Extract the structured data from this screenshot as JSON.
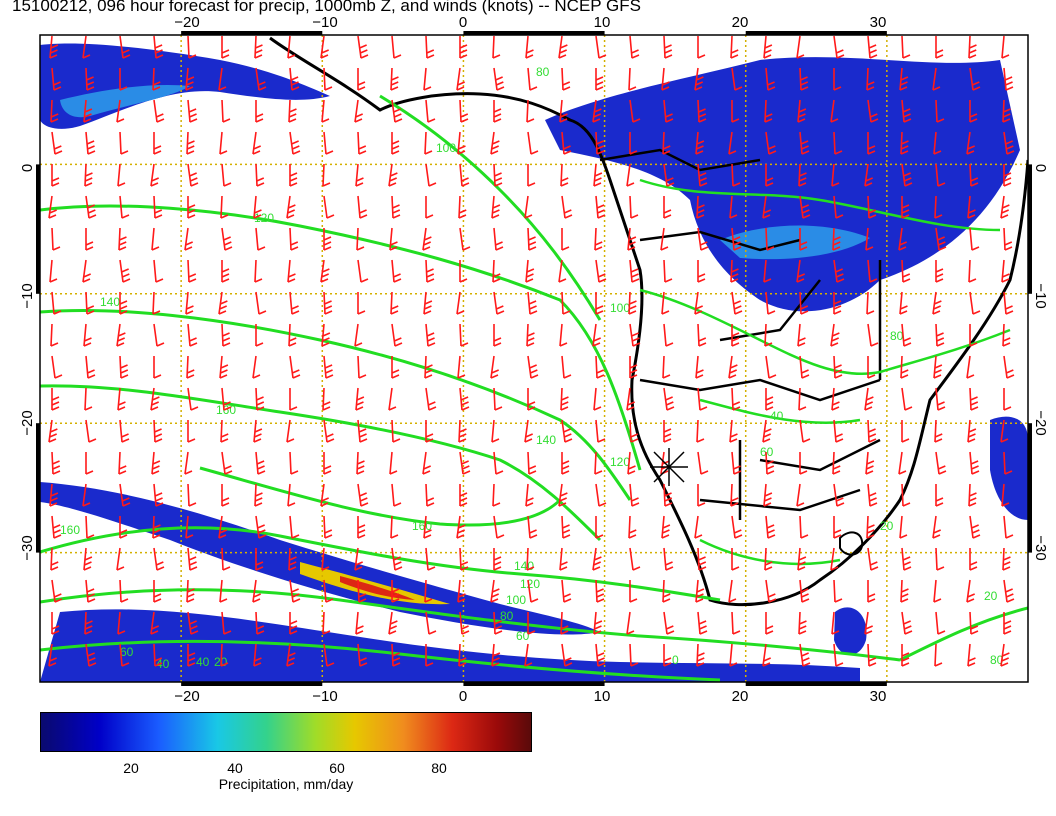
{
  "title": "15100212, 096 hour forecast for precip, 1000mb Z, and winds (knots) -- NCEP GFS",
  "map": {
    "lon_range": [
      -30,
      40
    ],
    "lat_range": [
      -40,
      10
    ],
    "lon_ticks": [
      "−20",
      "−10",
      "0",
      "10",
      "20",
      "30"
    ],
    "lat_ticks": [
      "0",
      "−10",
      "−20",
      "−30"
    ],
    "contour_labels": [
      "80",
      "100",
      "120",
      "140",
      "160",
      "160",
      "140",
      "120",
      "100",
      "80",
      "60",
      "40",
      "20",
      "160",
      "140",
      "120",
      "100",
      "80",
      "60",
      "40",
      "20",
      "0",
      "20",
      "40",
      "60",
      "80"
    ],
    "colors": {
      "wind": "#ff1a1a",
      "contour": "#22dd22",
      "grid": "#d4b000",
      "coast": "#000000",
      "precip": "#1a2acc"
    }
  },
  "colorbar": {
    "ticks": [
      "20",
      "40",
      "60",
      "80"
    ],
    "label": "Precipitation, mm/day"
  }
}
